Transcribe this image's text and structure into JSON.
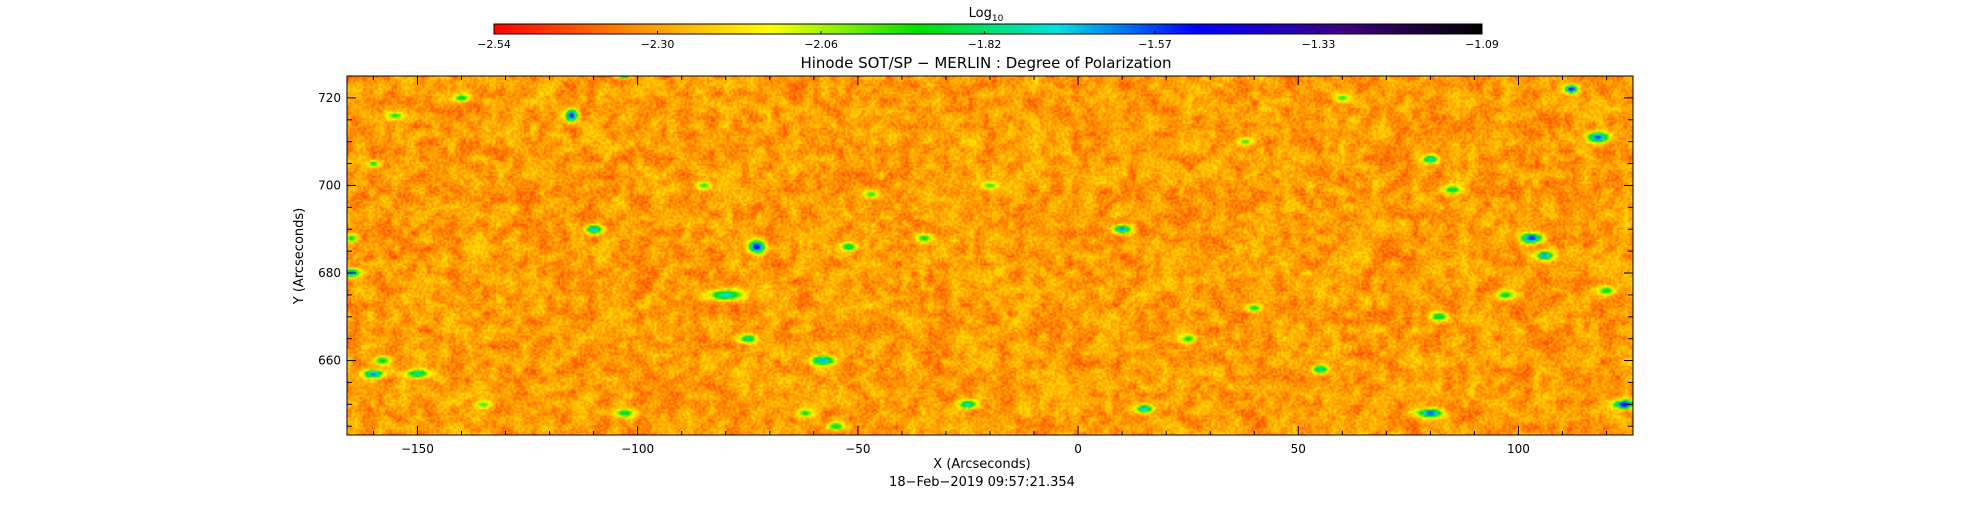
{
  "chart_data": {
    "type": "heatmap",
    "title": "Hinode SOT/SP − MERLIN : Degree of Polarization",
    "xlabel": "X (Arcseconds)",
    "ylabel": "Y (Arcseconds)",
    "timestamp": "18−Feb−2019 09:57:21.354",
    "xlim": [
      -166,
      126
    ],
    "ylim": [
      643,
      725
    ],
    "x_ticks": [
      -150,
      -100,
      -50,
      0,
      50,
      100
    ],
    "x_tick_labels": [
      "−150",
      "−100",
      "−50",
      "0",
      "50",
      "100"
    ],
    "y_ticks": [
      660,
      680,
      700,
      720
    ],
    "y_tick_labels": [
      "660",
      "680",
      "700",
      "720"
    ],
    "colorbar": {
      "label_base": "Log",
      "label_sub": "10",
      "range": [
        -2.54,
        -1.09
      ],
      "ticks": [
        -2.54,
        -2.3,
        -2.06,
        -1.82,
        -1.57,
        -1.33,
        -1.09
      ],
      "tick_labels": [
        "−2.54",
        "−2.30",
        "−2.06",
        "−1.82",
        "−1.57",
        "−1.33",
        "−1.09"
      ],
      "colors": [
        "#ff0000",
        "#ff8c00",
        "#ffff00",
        "#00e000",
        "#00e0e0",
        "#0000ff",
        "#400080",
        "#000000"
      ]
    },
    "field": {
      "background_value_range": [
        -2.45,
        -2.15
      ],
      "bright_features": [
        {
          "x": -165,
          "y": 680,
          "v": -1.6,
          "rx": 2,
          "ry": 1
        },
        {
          "x": -160,
          "y": 657,
          "v": -1.6,
          "rx": 2.5,
          "ry": 1
        },
        {
          "x": -158,
          "y": 660,
          "v": -1.85,
          "rx": 2,
          "ry": 1
        },
        {
          "x": -150,
          "y": 657,
          "v": -1.75,
          "rx": 3,
          "ry": 1
        },
        {
          "x": -165,
          "y": 688,
          "v": -1.9,
          "rx": 1.5,
          "ry": 1
        },
        {
          "x": -160,
          "y": 705,
          "v": -1.9,
          "rx": 1.5,
          "ry": 0.8
        },
        {
          "x": -155,
          "y": 716,
          "v": -1.9,
          "rx": 2,
          "ry": 0.8
        },
        {
          "x": -140,
          "y": 720,
          "v": -1.85,
          "rx": 2,
          "ry": 1
        },
        {
          "x": -135,
          "y": 650,
          "v": -1.95,
          "rx": 2,
          "ry": 0.8
        },
        {
          "x": -115,
          "y": 716,
          "v": -1.5,
          "rx": 1.5,
          "ry": 1.5
        },
        {
          "x": -110,
          "y": 690,
          "v": -1.65,
          "rx": 2,
          "ry": 1
        },
        {
          "x": -103,
          "y": 648,
          "v": -1.8,
          "rx": 2,
          "ry": 1
        },
        {
          "x": -103,
          "y": 725,
          "v": -1.8,
          "rx": 2,
          "ry": 0.6
        },
        {
          "x": -85,
          "y": 700,
          "v": -1.95,
          "rx": 2,
          "ry": 1
        },
        {
          "x": -80,
          "y": 675,
          "v": -1.7,
          "rx": 4,
          "ry": 1.2
        },
        {
          "x": -75,
          "y": 665,
          "v": -1.75,
          "rx": 2,
          "ry": 1
        },
        {
          "x": -73,
          "y": 686,
          "v": -1.45,
          "rx": 2,
          "ry": 1.5
        },
        {
          "x": -62,
          "y": 648,
          "v": -1.9,
          "rx": 2,
          "ry": 1
        },
        {
          "x": -58,
          "y": 660,
          "v": -1.65,
          "rx": 3,
          "ry": 1.2
        },
        {
          "x": -55,
          "y": 645,
          "v": -1.8,
          "rx": 2,
          "ry": 0.8
        },
        {
          "x": -52,
          "y": 686,
          "v": -1.8,
          "rx": 2,
          "ry": 1
        },
        {
          "x": -47,
          "y": 698,
          "v": -1.95,
          "rx": 2,
          "ry": 1
        },
        {
          "x": -35,
          "y": 688,
          "v": -1.9,
          "rx": 2,
          "ry": 1
        },
        {
          "x": -25,
          "y": 650,
          "v": -1.7,
          "rx": 2,
          "ry": 1
        },
        {
          "x": -20,
          "y": 700,
          "v": -1.95,
          "rx": 2,
          "ry": 1
        },
        {
          "x": 10,
          "y": 690,
          "v": -1.6,
          "rx": 2,
          "ry": 1
        },
        {
          "x": 15,
          "y": 649,
          "v": -1.65,
          "rx": 2,
          "ry": 1
        },
        {
          "x": 25,
          "y": 665,
          "v": -1.9,
          "rx": 2,
          "ry": 1
        },
        {
          "x": 38,
          "y": 710,
          "v": -1.95,
          "rx": 2,
          "ry": 1
        },
        {
          "x": 40,
          "y": 672,
          "v": -1.9,
          "rx": 2,
          "ry": 1
        },
        {
          "x": 55,
          "y": 658,
          "v": -1.75,
          "rx": 2,
          "ry": 1
        },
        {
          "x": 60,
          "y": 720,
          "v": -1.95,
          "rx": 2,
          "ry": 1
        },
        {
          "x": 80,
          "y": 706,
          "v": -1.7,
          "rx": 2,
          "ry": 1
        },
        {
          "x": 82,
          "y": 670,
          "v": -1.8,
          "rx": 2,
          "ry": 1
        },
        {
          "x": 80,
          "y": 648,
          "v": -1.55,
          "rx": 3,
          "ry": 1
        },
        {
          "x": 85,
          "y": 699,
          "v": -1.8,
          "rx": 2,
          "ry": 1
        },
        {
          "x": 97,
          "y": 675,
          "v": -1.85,
          "rx": 2,
          "ry": 1
        },
        {
          "x": 103,
          "y": 688,
          "v": -1.5,
          "rx": 2.5,
          "ry": 1.2
        },
        {
          "x": 106,
          "y": 684,
          "v": -1.6,
          "rx": 2,
          "ry": 1
        },
        {
          "x": 112,
          "y": 722,
          "v": -1.45,
          "rx": 1.5,
          "ry": 1
        },
        {
          "x": 118,
          "y": 711,
          "v": -1.55,
          "rx": 2.5,
          "ry": 1.2
        },
        {
          "x": 124,
          "y": 650,
          "v": -1.4,
          "rx": 2.5,
          "ry": 1
        },
        {
          "x": 120,
          "y": 676,
          "v": -1.85,
          "rx": 2,
          "ry": 1
        }
      ]
    }
  }
}
